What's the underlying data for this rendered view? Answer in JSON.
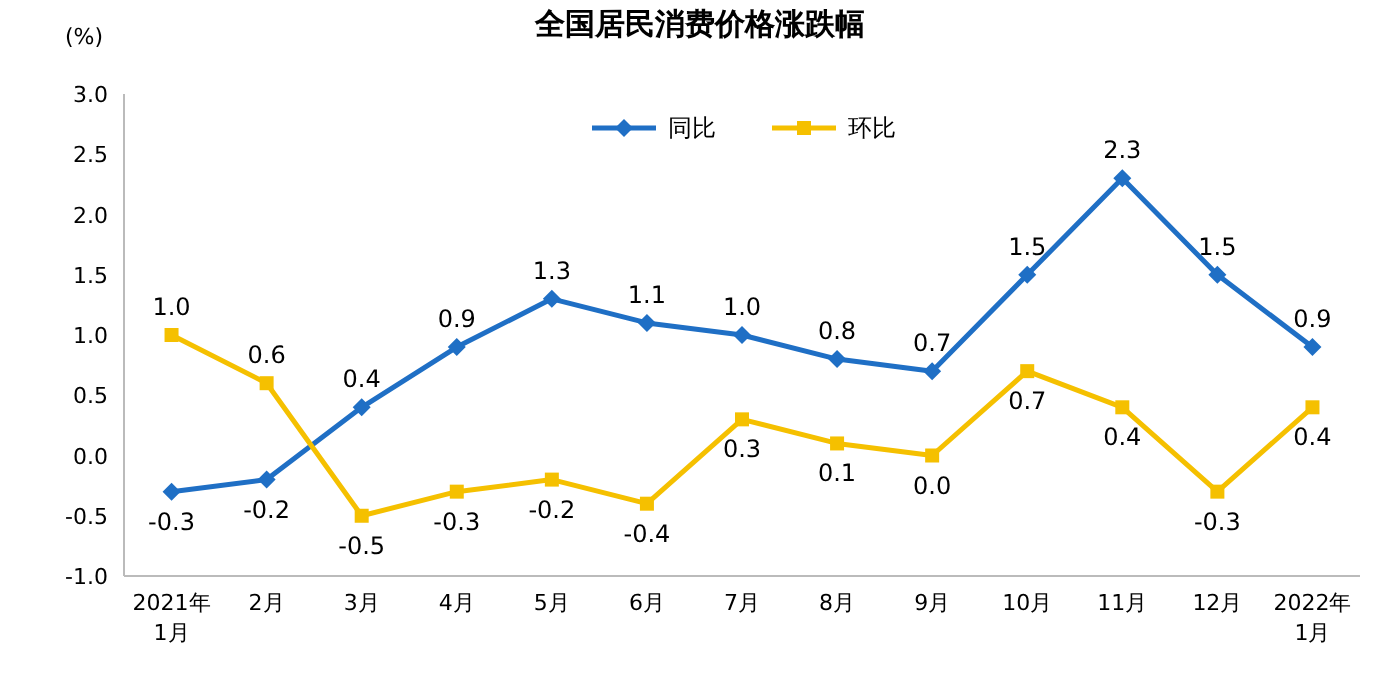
{
  "chart_data": {
    "type": "line",
    "title": "全国居民消费价格涨跌幅",
    "ylabel": "(%)",
    "categories": [
      "2021年1月",
      "2月",
      "3月",
      "4月",
      "5月",
      "6月",
      "7月",
      "8月",
      "9月",
      "10月",
      "11月",
      "12月",
      "2022年1月"
    ],
    "series": [
      {
        "name": "同比",
        "color": "#1f6fc5",
        "marker": "diamond",
        "values": [
          -0.3,
          -0.2,
          0.4,
          0.9,
          1.3,
          1.1,
          1.0,
          0.8,
          0.7,
          1.5,
          2.3,
          1.5,
          0.9
        ],
        "value_labels": [
          "-0.3",
          "-0.2",
          "0.4",
          "0.9",
          "1.3",
          "1.1",
          "1.0",
          "0.8",
          "0.7",
          "1.5",
          "2.3",
          "1.5",
          "0.9"
        ]
      },
      {
        "name": "环比",
        "color": "#f5c000",
        "marker": "square",
        "values": [
          1.0,
          0.6,
          -0.5,
          -0.3,
          -0.2,
          -0.4,
          0.3,
          0.1,
          0.0,
          0.7,
          0.4,
          -0.3,
          0.4
        ],
        "value_labels": [
          "1.0",
          "0.6",
          "-0.5",
          "-0.3",
          "-0.2",
          "-0.4",
          "0.3",
          "0.1",
          "0.0",
          "0.7",
          "0.4",
          "-0.3",
          "0.4"
        ]
      }
    ],
    "ylim": [
      -1,
      3
    ],
    "yticks": [
      {
        "value": -1,
        "label": "-1.0"
      },
      {
        "value": -0.5,
        "label": "-0.5"
      },
      {
        "value": 0,
        "label": "0.0"
      },
      {
        "value": 0.5,
        "label": "0.5"
      },
      {
        "value": 1,
        "label": "1.0"
      },
      {
        "value": 1.5,
        "label": "1.5"
      },
      {
        "value": 2,
        "label": "2.0"
      },
      {
        "value": 2.5,
        "label": "2.5"
      },
      {
        "value": 3,
        "label": "3.0"
      }
    ],
    "legend": "top",
    "grid": false,
    "line_style": "solid"
  }
}
